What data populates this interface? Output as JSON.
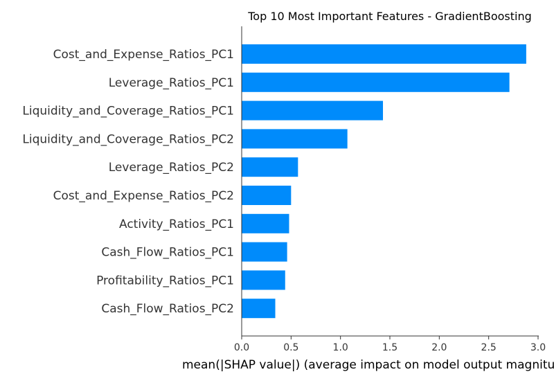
{
  "chart_data": {
    "type": "bar",
    "orientation": "horizontal",
    "title": "Top 10 Most Important Features - GradientBoosting",
    "xlabel": "mean(|SHAP value|) (average impact on model output magnitude)",
    "ylabel": "",
    "xlim": [
      0,
      3.0
    ],
    "xticks": [
      "0.0",
      "0.5",
      "1.0",
      "1.5",
      "2.0",
      "2.5",
      "3.0"
    ],
    "grid": false,
    "bar_color": "#008bfb",
    "categories": [
      "Cost_and_Expense_Ratios_PC1",
      "Leverage_Ratios_PC1",
      "Liquidity_and_Coverage_Ratios_PC1",
      "Liquidity_and_Coverage_Ratios_PC2",
      "Leverage_Ratios_PC2",
      "Cost_and_Expense_Ratios_PC2",
      "Activity_Ratios_PC1",
      "Cash_Flow_Ratios_PC1",
      "Profitability_Ratios_PC1",
      "Cash_Flow_Ratios_PC2"
    ],
    "values": [
      2.88,
      2.71,
      1.43,
      1.07,
      0.57,
      0.5,
      0.48,
      0.46,
      0.44,
      0.34
    ]
  }
}
